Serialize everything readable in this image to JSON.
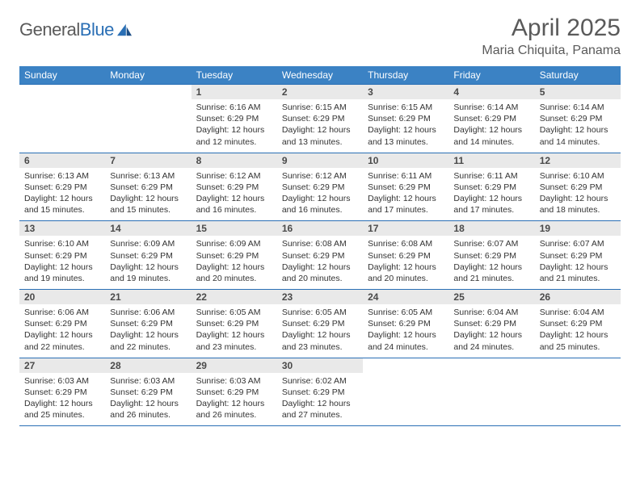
{
  "logo": {
    "text_gray": "General",
    "text_blue": "Blue"
  },
  "header": {
    "title": "April 2025",
    "location": "Maria Chiquita, Panama"
  },
  "colors": {
    "header_bg": "#3b82c4",
    "header_fg": "#ffffff",
    "divider": "#2a6fb5",
    "daynum_bg": "#e9e9e9",
    "text": "#333333",
    "logo_gray": "#5a5a5a",
    "logo_blue": "#2a6fb5"
  },
  "weekdays": [
    "Sunday",
    "Monday",
    "Tuesday",
    "Wednesday",
    "Thursday",
    "Friday",
    "Saturday"
  ],
  "weeks": [
    {
      "nums": [
        "",
        "",
        "1",
        "2",
        "3",
        "4",
        "5"
      ],
      "cells": [
        null,
        null,
        {
          "sunrise": "Sunrise: 6:16 AM",
          "sunset": "Sunset: 6:29 PM",
          "day1": "Daylight: 12 hours",
          "day2": "and 12 minutes."
        },
        {
          "sunrise": "Sunrise: 6:15 AM",
          "sunset": "Sunset: 6:29 PM",
          "day1": "Daylight: 12 hours",
          "day2": "and 13 minutes."
        },
        {
          "sunrise": "Sunrise: 6:15 AM",
          "sunset": "Sunset: 6:29 PM",
          "day1": "Daylight: 12 hours",
          "day2": "and 13 minutes."
        },
        {
          "sunrise": "Sunrise: 6:14 AM",
          "sunset": "Sunset: 6:29 PM",
          "day1": "Daylight: 12 hours",
          "day2": "and 14 minutes."
        },
        {
          "sunrise": "Sunrise: 6:14 AM",
          "sunset": "Sunset: 6:29 PM",
          "day1": "Daylight: 12 hours",
          "day2": "and 14 minutes."
        }
      ]
    },
    {
      "nums": [
        "6",
        "7",
        "8",
        "9",
        "10",
        "11",
        "12"
      ],
      "cells": [
        {
          "sunrise": "Sunrise: 6:13 AM",
          "sunset": "Sunset: 6:29 PM",
          "day1": "Daylight: 12 hours",
          "day2": "and 15 minutes."
        },
        {
          "sunrise": "Sunrise: 6:13 AM",
          "sunset": "Sunset: 6:29 PM",
          "day1": "Daylight: 12 hours",
          "day2": "and 15 minutes."
        },
        {
          "sunrise": "Sunrise: 6:12 AM",
          "sunset": "Sunset: 6:29 PM",
          "day1": "Daylight: 12 hours",
          "day2": "and 16 minutes."
        },
        {
          "sunrise": "Sunrise: 6:12 AM",
          "sunset": "Sunset: 6:29 PM",
          "day1": "Daylight: 12 hours",
          "day2": "and 16 minutes."
        },
        {
          "sunrise": "Sunrise: 6:11 AM",
          "sunset": "Sunset: 6:29 PM",
          "day1": "Daylight: 12 hours",
          "day2": "and 17 minutes."
        },
        {
          "sunrise": "Sunrise: 6:11 AM",
          "sunset": "Sunset: 6:29 PM",
          "day1": "Daylight: 12 hours",
          "day2": "and 17 minutes."
        },
        {
          "sunrise": "Sunrise: 6:10 AM",
          "sunset": "Sunset: 6:29 PM",
          "day1": "Daylight: 12 hours",
          "day2": "and 18 minutes."
        }
      ]
    },
    {
      "nums": [
        "13",
        "14",
        "15",
        "16",
        "17",
        "18",
        "19"
      ],
      "cells": [
        {
          "sunrise": "Sunrise: 6:10 AM",
          "sunset": "Sunset: 6:29 PM",
          "day1": "Daylight: 12 hours",
          "day2": "and 19 minutes."
        },
        {
          "sunrise": "Sunrise: 6:09 AM",
          "sunset": "Sunset: 6:29 PM",
          "day1": "Daylight: 12 hours",
          "day2": "and 19 minutes."
        },
        {
          "sunrise": "Sunrise: 6:09 AM",
          "sunset": "Sunset: 6:29 PM",
          "day1": "Daylight: 12 hours",
          "day2": "and 20 minutes."
        },
        {
          "sunrise": "Sunrise: 6:08 AM",
          "sunset": "Sunset: 6:29 PM",
          "day1": "Daylight: 12 hours",
          "day2": "and 20 minutes."
        },
        {
          "sunrise": "Sunrise: 6:08 AM",
          "sunset": "Sunset: 6:29 PM",
          "day1": "Daylight: 12 hours",
          "day2": "and 20 minutes."
        },
        {
          "sunrise": "Sunrise: 6:07 AM",
          "sunset": "Sunset: 6:29 PM",
          "day1": "Daylight: 12 hours",
          "day2": "and 21 minutes."
        },
        {
          "sunrise": "Sunrise: 6:07 AM",
          "sunset": "Sunset: 6:29 PM",
          "day1": "Daylight: 12 hours",
          "day2": "and 21 minutes."
        }
      ]
    },
    {
      "nums": [
        "20",
        "21",
        "22",
        "23",
        "24",
        "25",
        "26"
      ],
      "cells": [
        {
          "sunrise": "Sunrise: 6:06 AM",
          "sunset": "Sunset: 6:29 PM",
          "day1": "Daylight: 12 hours",
          "day2": "and 22 minutes."
        },
        {
          "sunrise": "Sunrise: 6:06 AM",
          "sunset": "Sunset: 6:29 PM",
          "day1": "Daylight: 12 hours",
          "day2": "and 22 minutes."
        },
        {
          "sunrise": "Sunrise: 6:05 AM",
          "sunset": "Sunset: 6:29 PM",
          "day1": "Daylight: 12 hours",
          "day2": "and 23 minutes."
        },
        {
          "sunrise": "Sunrise: 6:05 AM",
          "sunset": "Sunset: 6:29 PM",
          "day1": "Daylight: 12 hours",
          "day2": "and 23 minutes."
        },
        {
          "sunrise": "Sunrise: 6:05 AM",
          "sunset": "Sunset: 6:29 PM",
          "day1": "Daylight: 12 hours",
          "day2": "and 24 minutes."
        },
        {
          "sunrise": "Sunrise: 6:04 AM",
          "sunset": "Sunset: 6:29 PM",
          "day1": "Daylight: 12 hours",
          "day2": "and 24 minutes."
        },
        {
          "sunrise": "Sunrise: 6:04 AM",
          "sunset": "Sunset: 6:29 PM",
          "day1": "Daylight: 12 hours",
          "day2": "and 25 minutes."
        }
      ]
    },
    {
      "nums": [
        "27",
        "28",
        "29",
        "30",
        "",
        "",
        ""
      ],
      "cells": [
        {
          "sunrise": "Sunrise: 6:03 AM",
          "sunset": "Sunset: 6:29 PM",
          "day1": "Daylight: 12 hours",
          "day2": "and 25 minutes."
        },
        {
          "sunrise": "Sunrise: 6:03 AM",
          "sunset": "Sunset: 6:29 PM",
          "day1": "Daylight: 12 hours",
          "day2": "and 26 minutes."
        },
        {
          "sunrise": "Sunrise: 6:03 AM",
          "sunset": "Sunset: 6:29 PM",
          "day1": "Daylight: 12 hours",
          "day2": "and 26 minutes."
        },
        {
          "sunrise": "Sunrise: 6:02 AM",
          "sunset": "Sunset: 6:29 PM",
          "day1": "Daylight: 12 hours",
          "day2": "and 27 minutes."
        },
        null,
        null,
        null
      ]
    }
  ]
}
